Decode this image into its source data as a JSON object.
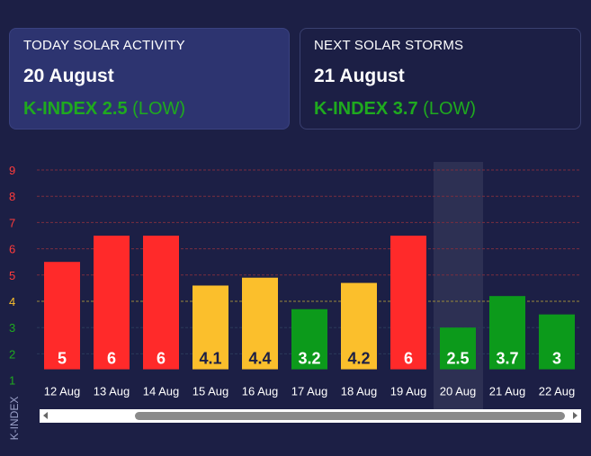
{
  "today": {
    "label": "TODAY SOLAR ACTIVITY",
    "date": "20 August",
    "k_name": "K-INDEX",
    "k_value": "2.5",
    "k_level": "(LOW)"
  },
  "next": {
    "label": "NEXT SOLAR STORMS",
    "date": "21 August",
    "k_name": "K-INDEX",
    "k_value": "3.7",
    "k_level": "(LOW)"
  },
  "chart_data": {
    "type": "bar",
    "ylabel": "K-INDEX",
    "ylim": [
      1,
      9
    ],
    "yticks": [
      1,
      2,
      3,
      4,
      5,
      6,
      7,
      8,
      9
    ],
    "categories": [
      "12 Aug",
      "13 Aug",
      "14 Aug",
      "15 Aug",
      "16 Aug",
      "17 Aug",
      "18 Aug",
      "19 Aug",
      "20 Aug",
      "21 Aug",
      "22 Aug"
    ],
    "values": [
      5,
      6,
      6,
      4.1,
      4.4,
      3.2,
      4.2,
      6,
      2.5,
      3.7,
      3
    ],
    "highlighted_category": "20 Aug",
    "colors": {
      "low": "#0c9a1b",
      "moderate": "#fbbf2c",
      "high": "#ff2a2a",
      "tick_high": "#ff3b3b",
      "tick_moderate": "#fbbf2c",
      "tick_low": "#1faa1f",
      "grid_high": "#7a2e3f",
      "grid_moderate": "#9c8a3a",
      "grid_low": "#2a3a5a"
    }
  }
}
